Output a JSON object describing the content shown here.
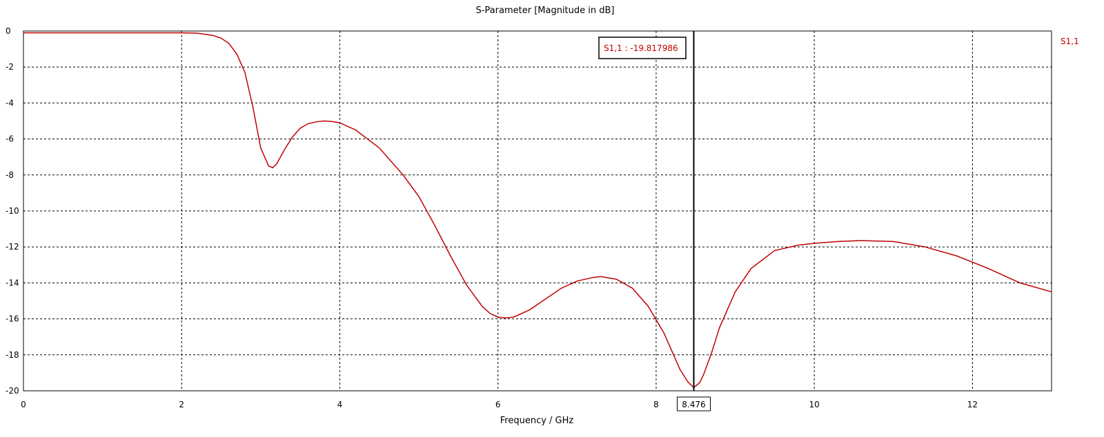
{
  "chart_data": {
    "type": "line",
    "title": "S-Parameter [Magnitude in dB]",
    "xlabel": "Frequency / GHz",
    "ylabel": "",
    "xlim": [
      0,
      13
    ],
    "ylim": [
      -20,
      0
    ],
    "x_ticks": [
      "0",
      "2",
      "4",
      "6",
      "8",
      "10",
      "12"
    ],
    "y_ticks": [
      "0",
      "-2",
      "-4",
      "-6",
      "-8",
      "-10",
      "-12",
      "-14",
      "-16",
      "-18",
      "-20"
    ],
    "grid": true,
    "legend_position": "right",
    "colors": {
      "series": "#c00000",
      "grid": "#000000",
      "marker": "#000000"
    },
    "series": [
      {
        "name": "S1,1",
        "x": [
          0,
          0.5,
          1,
          1.5,
          2,
          2.2,
          2.4,
          2.5,
          2.6,
          2.7,
          2.8,
          2.9,
          3.0,
          3.1,
          3.15,
          3.2,
          3.3,
          3.4,
          3.5,
          3.6,
          3.7,
          3.8,
          3.9,
          4.0,
          4.2,
          4.5,
          4.8,
          5.0,
          5.2,
          5.4,
          5.6,
          5.8,
          5.9,
          6.0,
          6.1,
          6.2,
          6.4,
          6.6,
          6.8,
          7.0,
          7.2,
          7.3,
          7.5,
          7.7,
          7.9,
          8.1,
          8.2,
          8.3,
          8.4,
          8.476,
          8.55,
          8.6,
          8.7,
          8.8,
          9.0,
          9.2,
          9.5,
          9.8,
          10.0,
          10.3,
          10.6,
          11.0,
          11.4,
          11.8,
          12.2,
          12.6,
          13.0
        ],
        "y": [
          -0.1,
          -0.1,
          -0.1,
          -0.1,
          -0.1,
          -0.12,
          -0.25,
          -0.4,
          -0.7,
          -1.3,
          -2.3,
          -4.2,
          -6.5,
          -7.5,
          -7.6,
          -7.4,
          -6.6,
          -5.9,
          -5.4,
          -5.15,
          -5.05,
          -5.0,
          -5.03,
          -5.1,
          -5.5,
          -6.5,
          -8.0,
          -9.2,
          -10.8,
          -12.5,
          -14.1,
          -15.3,
          -15.7,
          -15.9,
          -15.95,
          -15.9,
          -15.5,
          -14.9,
          -14.3,
          -13.9,
          -13.7,
          -13.65,
          -13.8,
          -14.3,
          -15.3,
          -16.8,
          -17.8,
          -18.8,
          -19.5,
          -19.817986,
          -19.55,
          -19.1,
          -17.9,
          -16.5,
          -14.5,
          -13.2,
          -12.2,
          -11.9,
          -11.8,
          -11.7,
          -11.65,
          -11.7,
          -12.0,
          -12.5,
          -13.2,
          -14.0,
          -14.5
        ]
      }
    ],
    "marker": {
      "x_label": "8.476",
      "label": "S1,1 : -19.817986",
      "x": 8.476,
      "y": -19.817986
    }
  }
}
